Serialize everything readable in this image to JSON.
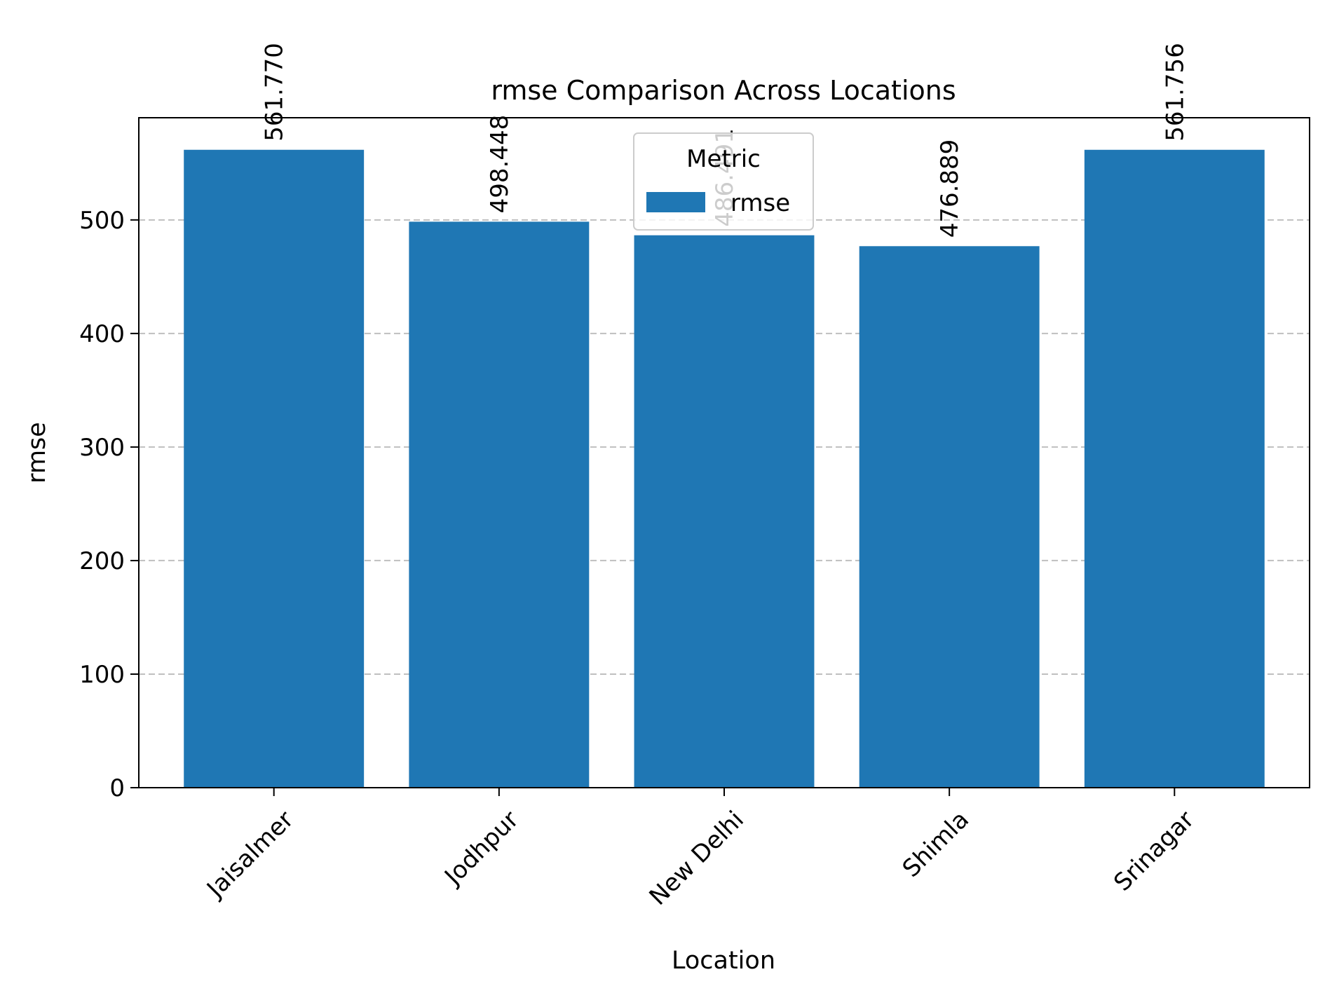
{
  "chart_data": {
    "type": "bar",
    "title": "rmse Comparison Across Locations",
    "xlabel": "Location",
    "ylabel": "rmse",
    "categories": [
      "Jaisalmer",
      "Jodhpur",
      "New Delhi",
      "Shimla",
      "Srinagar"
    ],
    "series": [
      {
        "name": "rmse",
        "values": [
          561.77,
          498.448,
          486.491,
          476.889,
          561.756
        ],
        "labels": [
          "561.770",
          "498.448",
          "486.491",
          "476.889",
          "561.756"
        ],
        "color": "#1f77b4"
      }
    ],
    "ylim": [
      0,
      590
    ],
    "yticks": [
      0,
      100,
      200,
      300,
      400,
      500
    ],
    "ytick_labels": [
      "0",
      "100",
      "200",
      "300",
      "400",
      "500"
    ],
    "grid": "y-dashed",
    "legend": {
      "title": "Metric",
      "placement": "upper-center",
      "entries": [
        "rmse"
      ]
    }
  }
}
